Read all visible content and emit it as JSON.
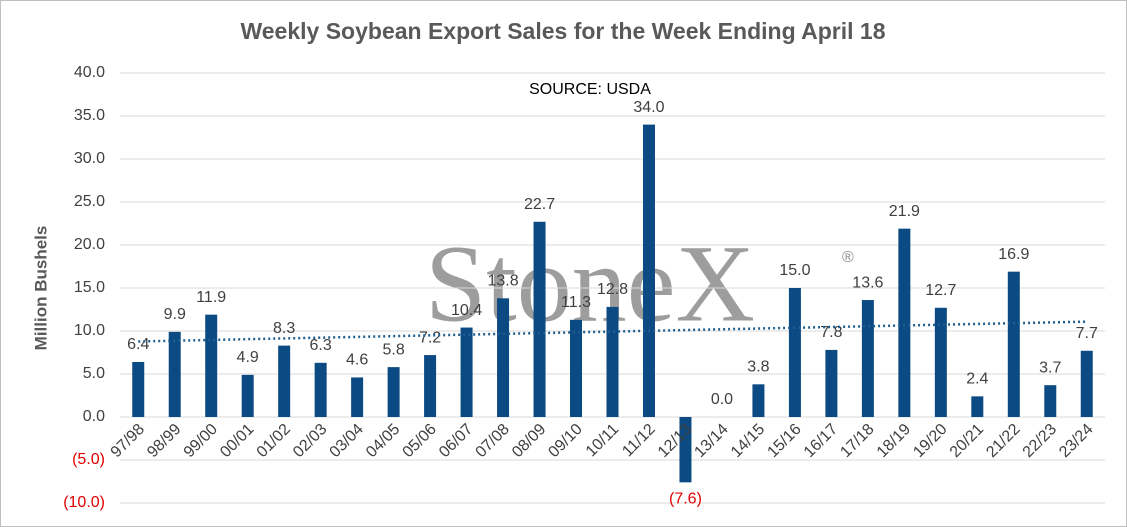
{
  "chart_data": {
    "type": "bar",
    "title": "Weekly Soybean Export Sales for the Week Ending April 18",
    "annotation": "SOURCE: USDA",
    "watermark": "StoneX",
    "watermark_symbol": "®",
    "y_label": "Million Bushels",
    "categories": [
      "97/98",
      "98/99",
      "99/00",
      "00/01",
      "01/02",
      "02/03",
      "03/04",
      "04/05",
      "05/06",
      "06/07",
      "07/08",
      "08/09",
      "09/10",
      "10/11",
      "11/12",
      "12/13",
      "13/14",
      "14/15",
      "15/16",
      "16/17",
      "17/18",
      "18/19",
      "19/20",
      "20/21",
      "21/22",
      "22/23",
      "23/24"
    ],
    "values": [
      6.4,
      9.9,
      11.9,
      4.9,
      8.3,
      6.3,
      4.6,
      5.8,
      7.2,
      10.4,
      13.8,
      22.7,
      11.3,
      12.8,
      34.0,
      -7.6,
      0.0,
      3.8,
      15.0,
      7.8,
      13.6,
      21.9,
      12.7,
      2.4,
      16.9,
      3.7,
      7.7
    ],
    "value_labels": [
      "6.4",
      "9.9",
      "11.9",
      "4.9",
      "8.3",
      "6.3",
      "4.6",
      "5.8",
      "7.2",
      "10.4",
      "13.8",
      "22.7",
      "11.3",
      "12.8",
      "34.0",
      "(7.6)",
      "0.0",
      "3.8",
      "15.0",
      "7.8",
      "13.6",
      "21.9",
      "12.7",
      "2.4",
      "16.9",
      "3.7",
      "7.7"
    ],
    "color": "#0b4a82",
    "negative_label_color": "#e00000",
    "trendline": true,
    "trendline_color": "#1f5f8f",
    "ylim": [
      -10,
      40
    ],
    "yticks": [
      {
        "value": -10,
        "label": "(10.0)"
      },
      {
        "value": -5,
        "label": "(5.0)"
      },
      {
        "value": 0,
        "label": "0.0"
      },
      {
        "value": 5,
        "label": "5.0"
      },
      {
        "value": 10,
        "label": "10.0"
      },
      {
        "value": 15,
        "label": "15.0"
      },
      {
        "value": 20,
        "label": "20.0"
      },
      {
        "value": 25,
        "label": "25.0"
      },
      {
        "value": 30,
        "label": "30.0"
      },
      {
        "value": 35,
        "label": "35.0"
      },
      {
        "value": 40,
        "label": "40.0"
      }
    ],
    "grid": true
  }
}
